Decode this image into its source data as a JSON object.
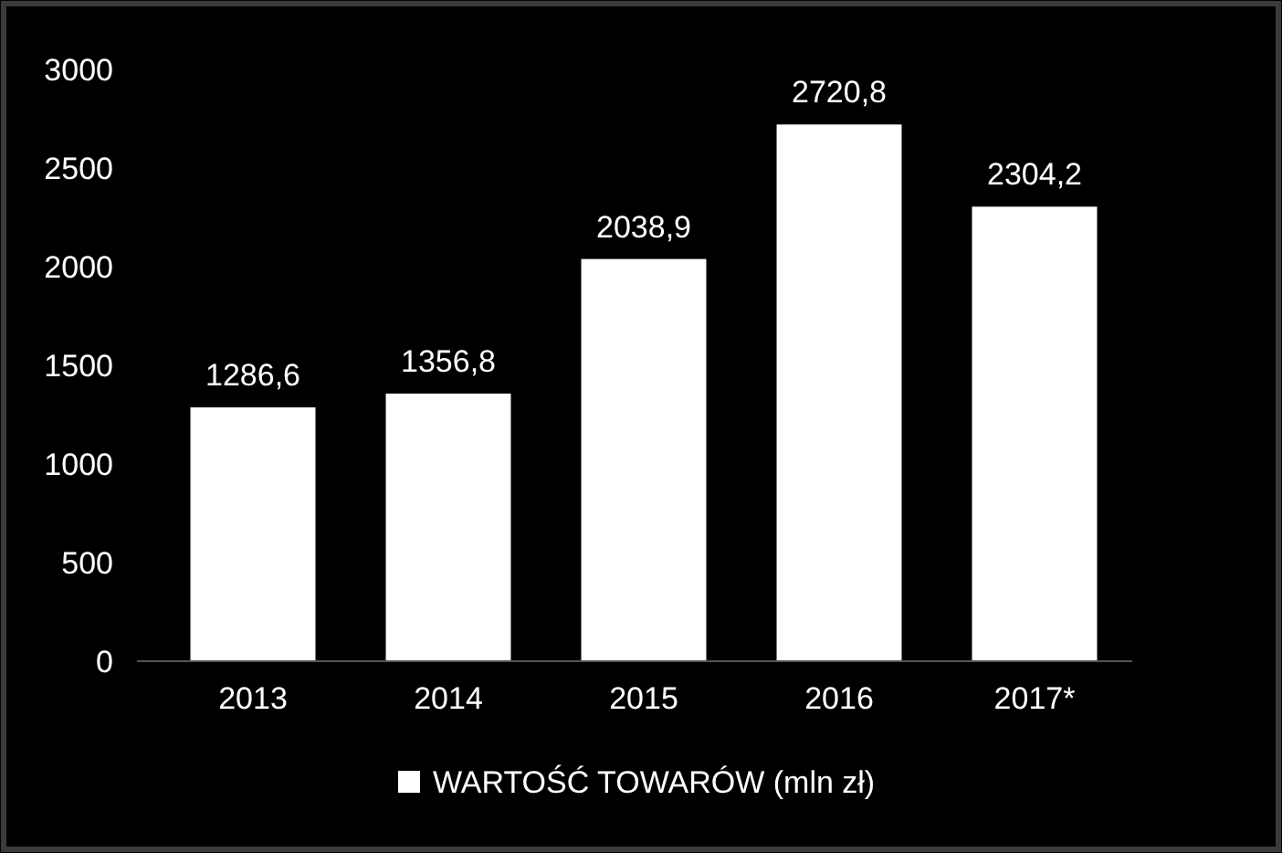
{
  "chart_data": {
    "type": "bar",
    "categories": [
      "2013",
      "2014",
      "2015",
      "2016",
      "2017*"
    ],
    "series": [
      {
        "name": "WARTOŚĆ TOWARÓW (mln zł)",
        "color": "#ffffff",
        "values": [
          1286.6,
          1356.8,
          2038.9,
          2720.8,
          2304.2
        ]
      }
    ],
    "value_labels": [
      "1286,6",
      "1356,8",
      "2038,9",
      "2720,8",
      "2304,2"
    ],
    "ylim": [
      0,
      3000
    ],
    "yticks": [
      0,
      500,
      1000,
      1500,
      2000,
      2500,
      3000
    ],
    "grid": false,
    "legend": "bottom"
  }
}
